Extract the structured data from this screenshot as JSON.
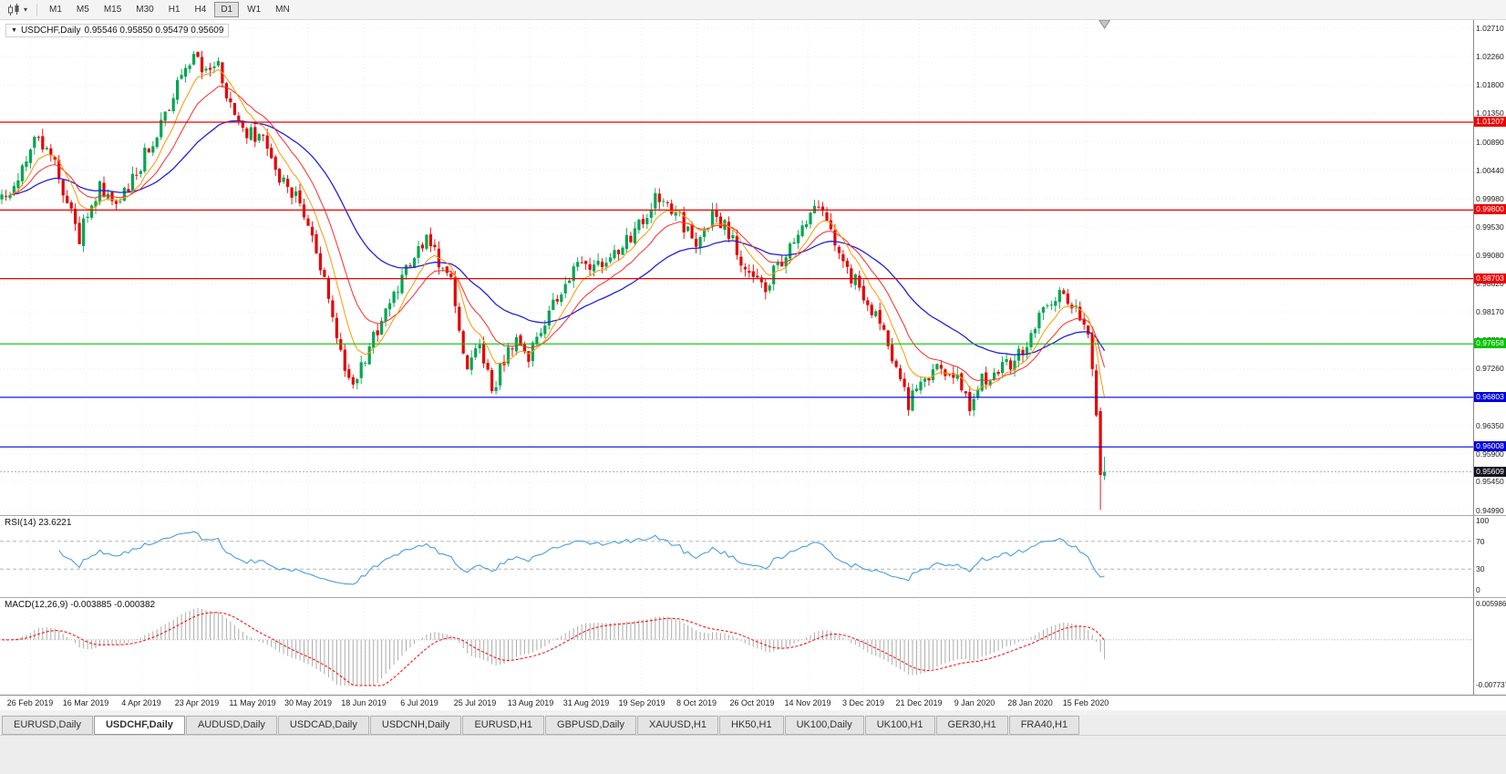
{
  "icons": {
    "dropdown": "▼"
  },
  "toolbar": {
    "timeframes": [
      "M1",
      "M5",
      "M15",
      "M30",
      "H1",
      "H4",
      "D1",
      "W1",
      "MN"
    ],
    "active": "D1",
    "chart_type_icon": "candlestick-chart"
  },
  "chart": {
    "header": {
      "symbol": "USDCHF,Daily",
      "ohlc": "0.95546 0.95850 0.95479 0.95609"
    },
    "rsi_label": "RSI(14) 23.6221",
    "macd_label": "MACD(12,26,9) -0.003885 -0.000382"
  },
  "chart_data": {
    "type": "candlestick",
    "symbol": "USDCHF",
    "period": "Daily",
    "last_ohlc": {
      "open": 0.95546,
      "high": 0.9585,
      "low": 0.95479,
      "close": 0.95609
    },
    "y_axis": {
      "labels": [
        "1.02710",
        "1.02260",
        "1.01800",
        "1.01350",
        "1.00890",
        "1.00440",
        "0.99980",
        "0.99530",
        "0.99080",
        "0.98620",
        "0.98170",
        "0.97720",
        "0.97260",
        "0.96810",
        "0.96350",
        "0.95900",
        "0.95450",
        "0.94990"
      ]
    },
    "x_axis": {
      "labels": [
        "26 Feb 2019",
        "16 Mar 2019",
        "4 Apr 2019",
        "23 Apr 2019",
        "11 May 2019",
        "30 May 2019",
        "18 Jun 2019",
        "6 Jul 2019",
        "25 Jul 2019",
        "13 Aug 2019",
        "31 Aug 2019",
        "19 Sep 2019",
        "8 Oct 2019",
        "26 Oct 2019",
        "14 Nov 2019",
        "3 Dec 2019",
        "21 Dec 2019",
        "9 Jan 2020",
        "28 Jan 2020",
        "15 Feb 2020"
      ]
    },
    "hlines": [
      {
        "price": 1.01207,
        "label": "1.01207",
        "color": "#ee0000"
      },
      {
        "price": 0.998,
        "label": "0.99800",
        "color": "#ee0000"
      },
      {
        "price": 0.98703,
        "label": "0.98703",
        "color": "#ee0000"
      },
      {
        "price": 0.97658,
        "label": "0.97658",
        "color": "#00c400"
      },
      {
        "price": 0.96803,
        "label": "0.96803",
        "color": "#0000dd"
      },
      {
        "price": 0.96008,
        "label": "0.96008",
        "color": "#0000dd"
      }
    ],
    "current_price": {
      "value": 0.95609,
      "label": "0.95609",
      "bg": "#11111b"
    },
    "colors": {
      "up": "#00a651",
      "down": "#e60000",
      "ma_fast": "#ff9900",
      "ma_mid": "#ff2a2a",
      "ma_slow": "#2222dd",
      "rsi": "#4a9ede",
      "macd_hist": "#ababab",
      "macd_signal": "#ff0000",
      "grid": "#ececec"
    },
    "candle_count": 271,
    "anchors": [
      [
        0,
        0.9995
      ],
      [
        4,
        1.003
      ],
      [
        8,
        1.0085
      ],
      [
        11,
        1.0092
      ],
      [
        15,
        1.001
      ],
      [
        19,
        0.9938
      ],
      [
        24,
        1.0018
      ],
      [
        28,
        0.9985
      ],
      [
        33,
        1.0042
      ],
      [
        38,
        1.0105
      ],
      [
        43,
        1.018
      ],
      [
        47,
        1.0226
      ],
      [
        50,
        1.0196
      ],
      [
        53,
        1.021
      ],
      [
        56,
        1.0152
      ],
      [
        60,
        1.0106
      ],
      [
        64,
        1.0088
      ],
      [
        67,
        1.0042
      ],
      [
        70,
        1.0008
      ],
      [
        73,
        0.9992
      ],
      [
        76,
        0.993
      ],
      [
        79,
        0.986
      ],
      [
        83,
        0.9752
      ],
      [
        86,
        0.9702
      ],
      [
        89,
        0.9748
      ],
      [
        93,
        0.98
      ],
      [
        97,
        0.9856
      ],
      [
        101,
        0.9906
      ],
      [
        104,
        0.9942
      ],
      [
        107,
        0.9894
      ],
      [
        110,
        0.9862
      ],
      [
        112,
        0.9792
      ],
      [
        114,
        0.9726
      ],
      [
        117,
        0.9762
      ],
      [
        120,
        0.969
      ],
      [
        123,
        0.974
      ],
      [
        126,
        0.977
      ],
      [
        129,
        0.9744
      ],
      [
        133,
        0.9802
      ],
      [
        138,
        0.9864
      ],
      [
        143,
        0.99
      ],
      [
        148,
        0.9884
      ],
      [
        152,
        0.9922
      ],
      [
        156,
        0.9952
      ],
      [
        160,
        1.0006
      ],
      [
        164,
        0.9986
      ],
      [
        167,
        0.9956
      ],
      [
        170,
        0.9922
      ],
      [
        174,
        0.9974
      ],
      [
        178,
        0.9946
      ],
      [
        183,
        0.9872
      ],
      [
        187,
        0.9854
      ],
      [
        191,
        0.9902
      ],
      [
        196,
        0.9962
      ],
      [
        200,
        0.9986
      ],
      [
        204,
        0.9932
      ],
      [
        207,
        0.9886
      ],
      [
        211,
        0.9842
      ],
      [
        215,
        0.9802
      ],
      [
        218,
        0.9746
      ],
      [
        222,
        0.9672
      ],
      [
        226,
        0.971
      ],
      [
        230,
        0.9724
      ],
      [
        234,
        0.9716
      ],
      [
        237,
        0.9662
      ],
      [
        240,
        0.9706
      ],
      [
        244,
        0.9724
      ],
      [
        248,
        0.9734
      ],
      [
        252,
        0.978
      ],
      [
        256,
        0.9832
      ],
      [
        259,
        0.985
      ],
      [
        262,
        0.9834
      ],
      [
        264,
        0.9816
      ],
      [
        266,
        0.9776
      ],
      [
        267,
        0.9736
      ],
      [
        268,
        0.9662
      ],
      [
        269,
        0.956
      ],
      [
        270,
        0.9561
      ]
    ],
    "final_candles": [
      {
        "open": 0.9658,
        "high": 0.9664,
        "low": 0.95,
        "close": 0.9556
      },
      {
        "open": 0.95546,
        "high": 0.9585,
        "low": 0.95479,
        "close": 0.95609
      }
    ],
    "rsi": {
      "label": "RSI(14)",
      "value": 23.6221,
      "levels": [
        70,
        30
      ],
      "scale_labels": [
        "100",
        "70",
        "30",
        "0"
      ],
      "scale_values": [
        100,
        70,
        30,
        0
      ]
    },
    "macd": {
      "label": "MACD(12,26,9)",
      "main": -0.003885,
      "signal": -0.000382,
      "scale_max": 0.005986,
      "scale_min": -0.007737,
      "scale_labels": [
        "0.005986",
        "-0.007737"
      ]
    }
  },
  "tabs": {
    "active": "USDCHF,Daily",
    "items": [
      "EURUSD,Daily",
      "USDCHF,Daily",
      "AUDUSD,Daily",
      "USDCAD,Daily",
      "USDCNH,Daily",
      "EURUSD,H1",
      "GBPUSD,Daily",
      "XAUUSD,H1",
      "HK50,H1",
      "UK100,Daily",
      "UK100,H1",
      "GER30,H1",
      "FRA40,H1"
    ]
  }
}
